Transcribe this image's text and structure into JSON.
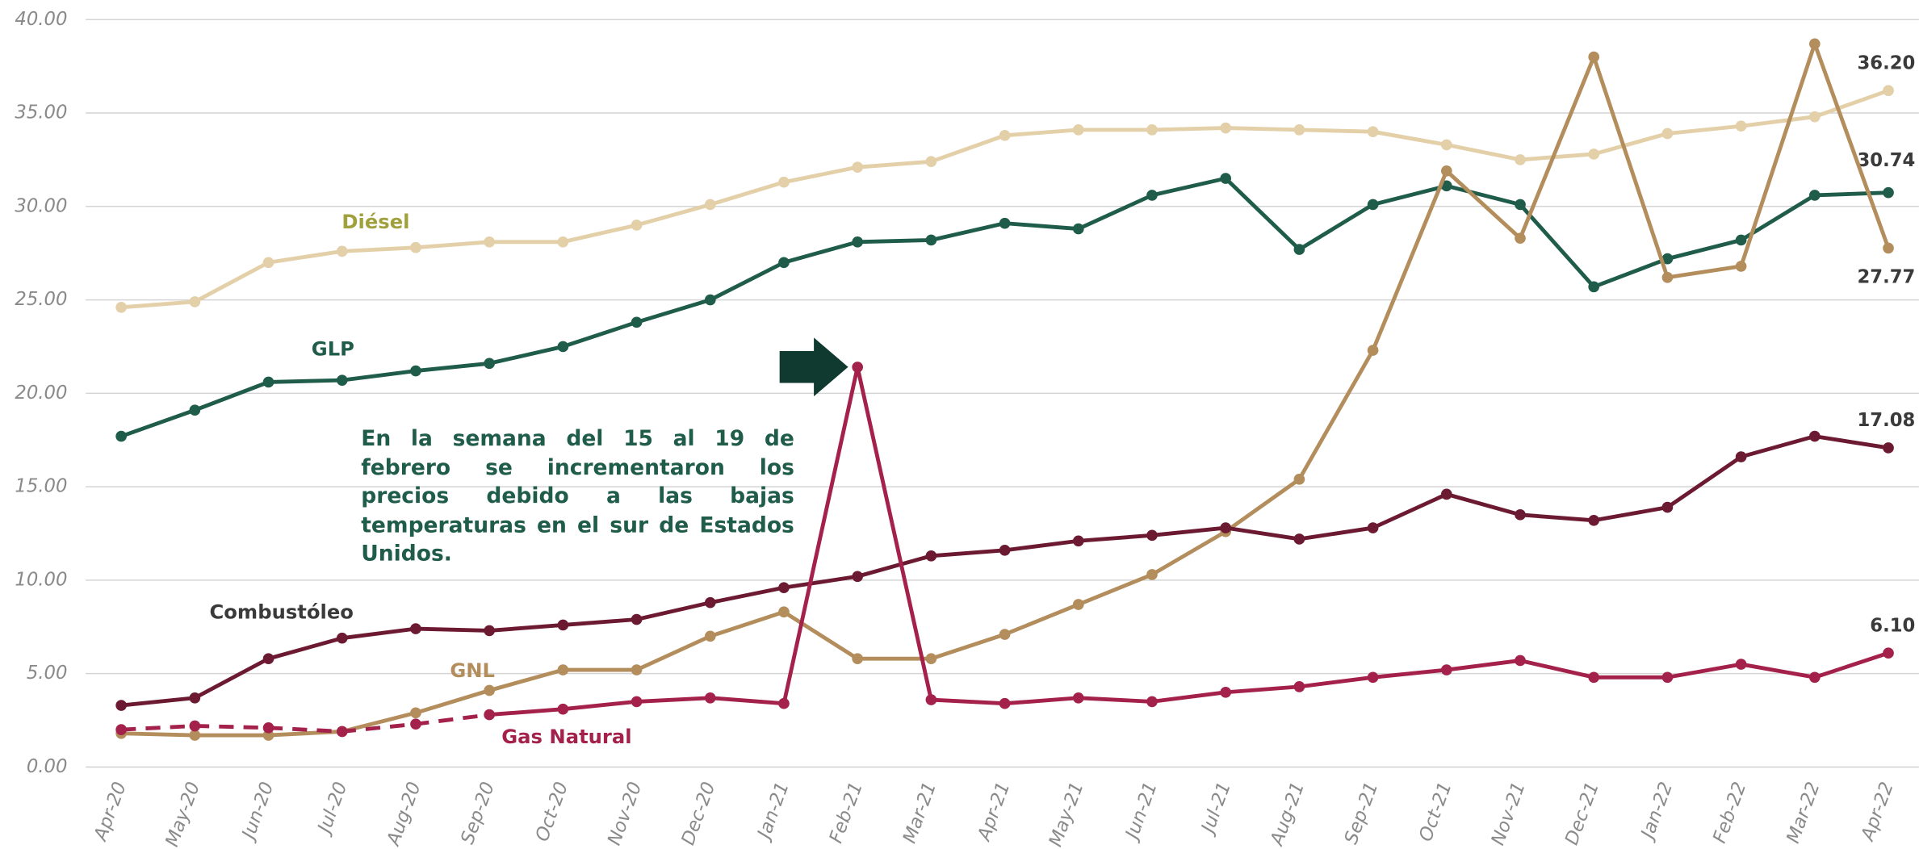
{
  "chart_data": {
    "type": "line",
    "categories": [
      "Apr-20",
      "May-20",
      "Jun-20",
      "Jul-20",
      "Aug-20",
      "Sep-20",
      "Oct-20",
      "Nov-20",
      "Dec-20",
      "Jan-21",
      "Feb-21",
      "Mar-21",
      "Apr-21",
      "May-21",
      "Jun-21",
      "Jul-21",
      "Aug-21",
      "Sep-21",
      "Oct-21",
      "Nov-21",
      "Dec-21",
      "Jan-22",
      "Feb-22",
      "Mar-22",
      "Apr-22"
    ],
    "ylim": [
      0,
      40
    ],
    "yticks": [
      {
        "value": 0,
        "label": "0.00"
      },
      {
        "value": 5,
        "label": "5.00"
      },
      {
        "value": 10,
        "label": "10.00"
      },
      {
        "value": 15,
        "label": "15.00"
      },
      {
        "value": 20,
        "label": "20.00"
      },
      {
        "value": 25,
        "label": "25.00"
      },
      {
        "value": 30,
        "label": "30.00"
      },
      {
        "value": 35,
        "label": "35.00"
      },
      {
        "value": 40,
        "label": "40.00"
      }
    ],
    "grid": true,
    "annotation": "En la semana del 15 al 19 de febrero se incrementaron los precios debido a las bajas temperaturas en el sur de Estados Unidos.",
    "series": [
      {
        "name": "Diésel",
        "color": "#e3cfa8",
        "label_color": "#a0a03c",
        "values": [
          24.6,
          24.9,
          27.0,
          27.6,
          27.8,
          28.1,
          28.1,
          29.0,
          30.1,
          31.3,
          32.1,
          32.4,
          33.8,
          34.1,
          34.1,
          34.2,
          34.1,
          34.0,
          33.3,
          32.5,
          32.8,
          33.9,
          34.3,
          34.8,
          36.2
        ],
        "value_labels": [
          null,
          null,
          null,
          null,
          null,
          null,
          null,
          null,
          null,
          null,
          null,
          null,
          null,
          null,
          null,
          null,
          null,
          null,
          null,
          null,
          null,
          null,
          null,
          null,
          "36.20"
        ]
      },
      {
        "name": "GLP",
        "color": "#1f5c4a",
        "label_color": "#1f5c4a",
        "values": [
          17.7,
          19.1,
          20.6,
          20.7,
          21.2,
          21.6,
          22.5,
          23.8,
          25.0,
          27.0,
          28.1,
          28.2,
          29.1,
          28.8,
          30.6,
          31.5,
          27.7,
          30.1,
          31.1,
          30.1,
          25.7,
          27.2,
          28.2,
          30.6,
          30.74
        ],
        "value_labels": [
          null,
          null,
          null,
          null,
          null,
          null,
          null,
          null,
          null,
          null,
          null,
          null,
          null,
          null,
          null,
          null,
          null,
          null,
          null,
          null,
          null,
          null,
          null,
          null,
          "30.74"
        ]
      },
      {
        "name": "GNL",
        "color": "#b38d5c",
        "label_color": "#b38d5c",
        "values": [
          1.8,
          1.7,
          1.7,
          1.9,
          2.9,
          4.1,
          5.2,
          5.2,
          7.0,
          8.3,
          5.8,
          5.8,
          7.1,
          8.7,
          10.3,
          12.6,
          15.4,
          22.3,
          31.9,
          28.3,
          38.0,
          26.2,
          26.8,
          38.7,
          27.77
        ],
        "value_labels": [
          null,
          null,
          null,
          null,
          null,
          null,
          null,
          null,
          null,
          null,
          null,
          null,
          null,
          null,
          null,
          null,
          null,
          null,
          null,
          null,
          null,
          null,
          null,
          null,
          "27.77"
        ]
      },
      {
        "name": "Combustóleo",
        "color": "#6b1a32",
        "label_color": "#3a3a3a",
        "values": [
          3.3,
          3.7,
          5.8,
          6.9,
          7.4,
          7.3,
          7.6,
          7.9,
          8.8,
          9.6,
          10.2,
          11.3,
          11.6,
          12.1,
          12.4,
          12.8,
          12.2,
          12.8,
          14.6,
          13.5,
          13.2,
          13.9,
          16.6,
          17.7,
          17.08
        ],
        "value_labels": [
          null,
          null,
          null,
          null,
          null,
          null,
          null,
          null,
          null,
          null,
          null,
          null,
          null,
          null,
          null,
          null,
          null,
          null,
          null,
          null,
          null,
          null,
          null,
          null,
          "17.08"
        ]
      },
      {
        "name": "Gas Natural",
        "color": "#a3214a",
        "label_color": "#a3214a",
        "dashed_to": 5,
        "values": [
          2.0,
          2.2,
          2.1,
          1.9,
          2.3,
          2.8,
          3.1,
          3.5,
          3.7,
          3.4,
          21.4,
          3.6,
          3.4,
          3.7,
          3.5,
          4.0,
          4.3,
          4.8,
          5.2,
          5.7,
          4.8,
          4.8,
          5.5,
          4.8,
          6.1
        ],
        "value_labels": [
          null,
          null,
          null,
          null,
          null,
          null,
          null,
          null,
          null,
          null,
          null,
          null,
          null,
          null,
          null,
          null,
          null,
          null,
          null,
          null,
          null,
          null,
          null,
          null,
          "6.10"
        ]
      }
    ]
  }
}
